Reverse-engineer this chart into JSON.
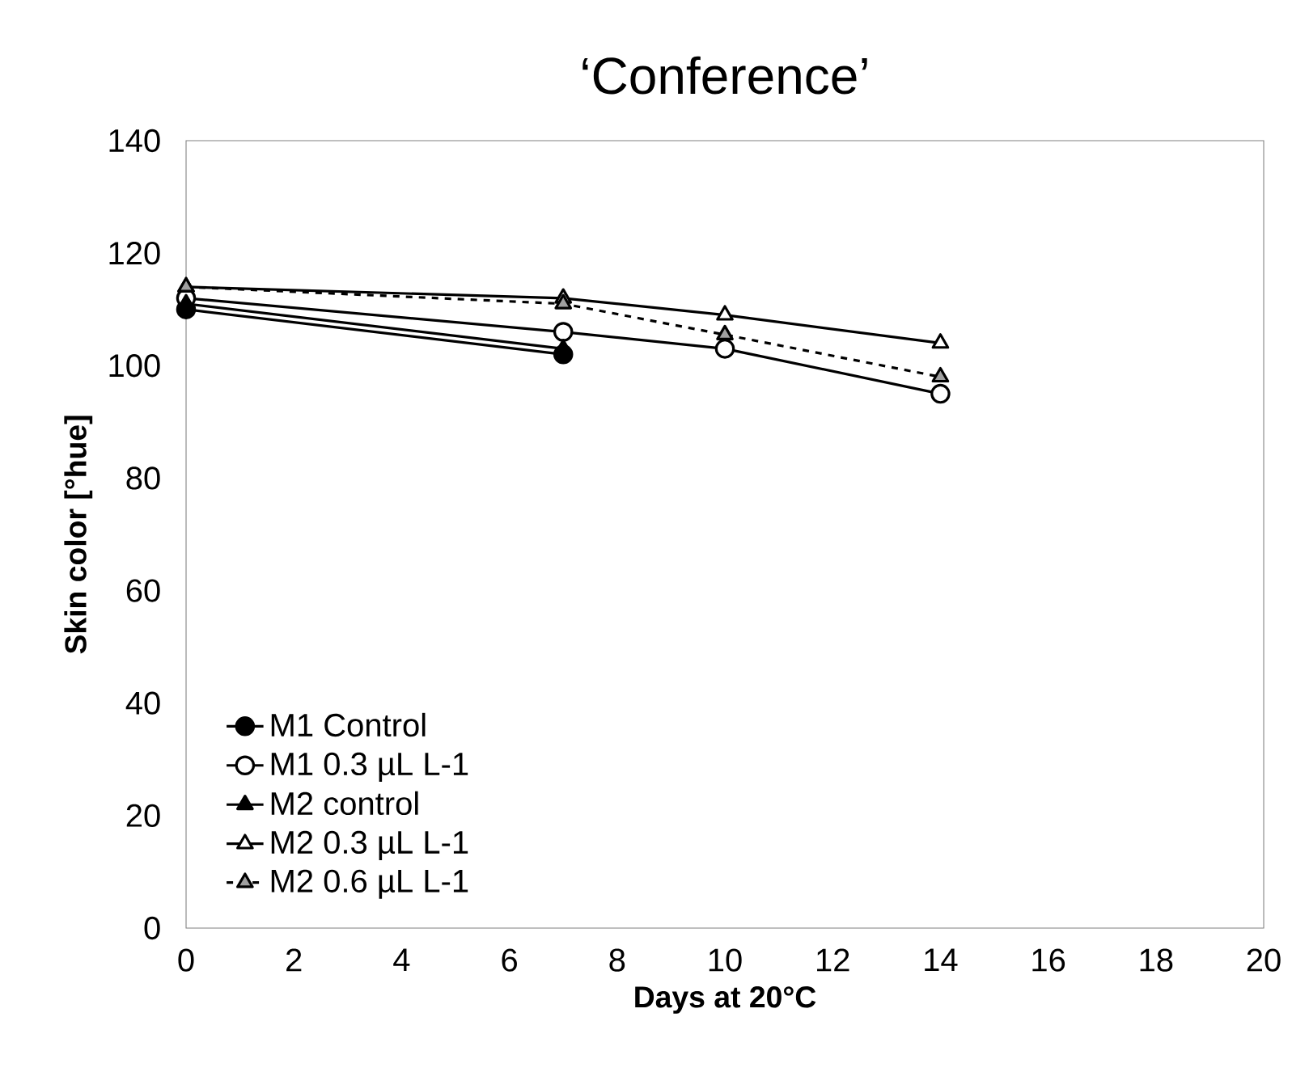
{
  "chart_data": {
    "type": "line",
    "title": "‘Conference’",
    "xlabel": "Days at 20°C",
    "ylabel": "Skin color [°hue]",
    "xlim": [
      0,
      20
    ],
    "xticks": [
      0,
      2,
      4,
      6,
      8,
      10,
      12,
      14,
      16,
      18,
      20
    ],
    "ylim": [
      0,
      140
    ],
    "yticks": [
      0,
      20,
      40,
      60,
      80,
      100,
      120,
      140
    ],
    "grid": false,
    "legend": "bottom left",
    "series": [
      {
        "name": "M1 Control",
        "color": "#000000",
        "marker": "circle",
        "line_style": "solid",
        "x": [
          0,
          7
        ],
        "values": [
          110,
          102
        ]
      },
      {
        "name": "M1 0.3 µL L-1",
        "color": "#ffffff",
        "marker": "circle",
        "line_style": "solid",
        "x": [
          0,
          7,
          10,
          14
        ],
        "values": [
          112,
          106,
          103,
          95
        ]
      },
      {
        "name": "M2 control",
        "color": "#000000",
        "marker": "triangle",
        "line_style": "solid",
        "x": [
          0,
          7
        ],
        "values": [
          111,
          103
        ]
      },
      {
        "name": "M2 0.3 µL L-1",
        "color": "#ffffff",
        "marker": "triangle",
        "line_style": "solid",
        "x": [
          0,
          7,
          10,
          14
        ],
        "values": [
          114,
          112,
          109,
          104
        ]
      },
      {
        "name": "M2 0.6 µL L-1",
        "color": "#a0a0a0",
        "marker": "triangle",
        "line_style": "dashed",
        "x": [
          0,
          7,
          10,
          14
        ],
        "values": [
          114,
          111,
          105.5,
          98
        ]
      }
    ]
  }
}
